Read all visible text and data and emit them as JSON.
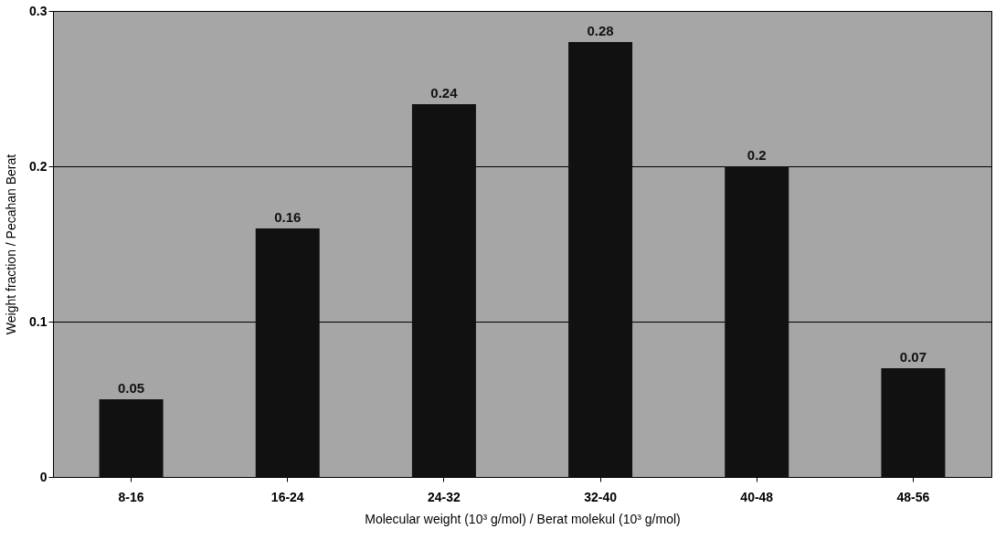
{
  "chart_data": {
    "type": "bar",
    "xlabel": "Molecular weight (10³ g/mol) / Berat molekul (10³ g/mol)",
    "ylabel": "Weight fraction / Pecahan Berat",
    "categories": [
      "8-16",
      "16-24",
      "24-32",
      "32-40",
      "40-48",
      "48-56"
    ],
    "values": [
      0.05,
      0.16,
      0.24,
      0.28,
      0.2,
      0.07
    ],
    "color": "#111111",
    "ylim": [
      0,
      0.3
    ],
    "yticks": [
      0,
      0.1,
      0.2,
      0.3
    ],
    "grid": "y",
    "data_labels": true
  }
}
